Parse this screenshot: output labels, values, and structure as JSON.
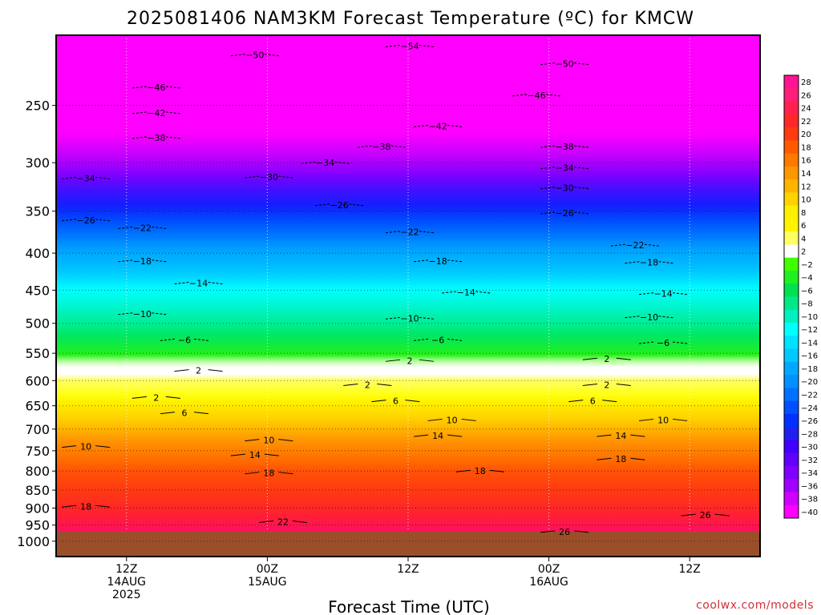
{
  "chart_data": {
    "type": "heatmap",
    "title": "2025081406 NAM3KM Forecast Temperature (ºC) for KMCW",
    "xlabel": "Forecast Time (UTC)",
    "credit": "coolwx.com/models",
    "y_scale": "log-pressure",
    "ylim": [
      1050,
      200
    ],
    "y_ticks": [
      250,
      300,
      350,
      400,
      450,
      500,
      550,
      600,
      650,
      700,
      750,
      800,
      850,
      900,
      950,
      1000
    ],
    "xlim_hours": [
      -5,
      45
    ],
    "x_ticks": [
      {
        "hour": 0,
        "lines": [
          "12Z",
          "14AUG",
          "2025"
        ]
      },
      {
        "hour": 10,
        "lines": [
          "00Z",
          "15AUG"
        ]
      },
      {
        "hour": 20,
        "lines": [
          "12Z"
        ]
      },
      {
        "hour": 30,
        "lines": [
          "00Z",
          "16AUG"
        ]
      },
      {
        "hour": 40,
        "lines": [
          "12Z"
        ]
      }
    ],
    "surface_pressure": 970,
    "profile": [
      {
        "p": 200,
        "t": -56
      },
      {
        "p": 220,
        "t": -53
      },
      {
        "p": 250,
        "t": -44
      },
      {
        "p": 300,
        "t": -35
      },
      {
        "p": 350,
        "t": -26
      },
      {
        "p": 400,
        "t": -18
      },
      {
        "p": 450,
        "t": -13
      },
      {
        "p": 500,
        "t": -9
      },
      {
        "p": 550,
        "t": -4
      },
      {
        "p": 580,
        "t": 1
      },
      {
        "p": 620,
        "t": 3
      },
      {
        "p": 650,
        "t": 6
      },
      {
        "p": 700,
        "t": 10
      },
      {
        "p": 750,
        "t": 14
      },
      {
        "p": 800,
        "t": 18
      },
      {
        "p": 850,
        "t": 20
      },
      {
        "p": 900,
        "t": 22
      },
      {
        "p": 950,
        "t": 25
      },
      {
        "p": 970,
        "t": 26
      }
    ],
    "colorbar": {
      "labels": [
        "28",
        "26",
        "24",
        "22",
        "20",
        "18",
        "16",
        "14",
        "12",
        "10",
        "8",
        "6",
        "4",
        "2",
        "−2",
        "−4",
        "−6",
        "−8",
        "−10",
        "−12",
        "−14",
        "−16",
        "−18",
        "−20",
        "−22",
        "−24",
        "−26",
        "−28",
        "−30",
        "−32",
        "−34",
        "−36",
        "−38",
        "−40"
      ],
      "colors": [
        "#ff1493",
        "#ff1e78",
        "#ff2050",
        "#ff2828",
        "#ff3a10",
        "#ff5a00",
        "#ff7800",
        "#ff9600",
        "#ffb400",
        "#ffd200",
        "#ffee00",
        "#fff300",
        "#ffff60",
        "#ffffff",
        "#40ff00",
        "#20f020",
        "#00e050",
        "#00e888",
        "#00f0c0",
        "#00ffff",
        "#00e0ff",
        "#00c8ff",
        "#00a8ff",
        "#0090ff",
        "#0070ff",
        "#0050ff",
        "#0030ff",
        "#2020f0",
        "#4000ff",
        "#6000ff",
        "#8000ff",
        "#a000ff",
        "#d000ff",
        "#ff00ff"
      ]
    },
    "contour_labels": [
      {
        "hour": 9,
        "p": 213,
        "text": "−50"
      },
      {
        "hour": 20,
        "p": 207,
        "text": "−54"
      },
      {
        "hour": 31,
        "p": 219,
        "text": "−50"
      },
      {
        "hour": 2,
        "p": 236,
        "text": "−46"
      },
      {
        "hour": 29,
        "p": 242,
        "text": "−46"
      },
      {
        "hour": 2,
        "p": 256,
        "text": "−42"
      },
      {
        "hour": 22,
        "p": 267,
        "text": "−42"
      },
      {
        "hour": 2,
        "p": 277,
        "text": "−38"
      },
      {
        "hour": 18,
        "p": 285,
        "text": "−38"
      },
      {
        "hour": 31,
        "p": 285,
        "text": "−38"
      },
      {
        "hour": -3,
        "p": 315,
        "text": "−34"
      },
      {
        "hour": 14,
        "p": 300,
        "text": "−34"
      },
      {
        "hour": 31,
        "p": 305,
        "text": "−34"
      },
      {
        "hour": 10,
        "p": 314,
        "text": "−30"
      },
      {
        "hour": 31,
        "p": 325,
        "text": "−30"
      },
      {
        "hour": -3,
        "p": 360,
        "text": "−26"
      },
      {
        "hour": 15,
        "p": 343,
        "text": "−26"
      },
      {
        "hour": 31,
        "p": 352,
        "text": "−26"
      },
      {
        "hour": 1,
        "p": 369,
        "text": "−22"
      },
      {
        "hour": 20,
        "p": 374,
        "text": "−22"
      },
      {
        "hour": 36,
        "p": 390,
        "text": "−22"
      },
      {
        "hour": 1,
        "p": 410,
        "text": "−18"
      },
      {
        "hour": 22,
        "p": 410,
        "text": "−18"
      },
      {
        "hour": 37,
        "p": 412,
        "text": "−18"
      },
      {
        "hour": 5,
        "p": 440,
        "text": "−14"
      },
      {
        "hour": 24,
        "p": 453,
        "text": "−14"
      },
      {
        "hour": 38,
        "p": 455,
        "text": "−14"
      },
      {
        "hour": 1,
        "p": 485,
        "text": "−10"
      },
      {
        "hour": 20,
        "p": 492,
        "text": "−10"
      },
      {
        "hour": 37,
        "p": 490,
        "text": "−10"
      },
      {
        "hour": 4,
        "p": 527,
        "text": "−6"
      },
      {
        "hour": 22,
        "p": 527,
        "text": "−6"
      },
      {
        "hour": 38,
        "p": 532,
        "text": "−6"
      },
      {
        "hour": 5,
        "p": 581,
        "text": "2"
      },
      {
        "hour": 20,
        "p": 563,
        "text": "2"
      },
      {
        "hour": 34,
        "p": 560,
        "text": "2"
      },
      {
        "hour": 2,
        "p": 633,
        "text": "2"
      },
      {
        "hour": 17,
        "p": 608,
        "text": "2"
      },
      {
        "hour": 34,
        "p": 608,
        "text": "2"
      },
      {
        "hour": 4,
        "p": 665,
        "text": "6"
      },
      {
        "hour": 19,
        "p": 640,
        "text": "6"
      },
      {
        "hour": 33,
        "p": 640,
        "text": "6"
      },
      {
        "hour": -3,
        "p": 740,
        "text": "10"
      },
      {
        "hour": 10,
        "p": 725,
        "text": "10"
      },
      {
        "hour": 23,
        "p": 680,
        "text": "10"
      },
      {
        "hour": 38,
        "p": 680,
        "text": "10"
      },
      {
        "hour": 9,
        "p": 760,
        "text": "14"
      },
      {
        "hour": 22,
        "p": 715,
        "text": "14"
      },
      {
        "hour": 35,
        "p": 715,
        "text": "14"
      },
      {
        "hour": 10,
        "p": 805,
        "text": "18"
      },
      {
        "hour": -3,
        "p": 895,
        "text": "18"
      },
      {
        "hour": 25,
        "p": 800,
        "text": "18"
      },
      {
        "hour": 35,
        "p": 770,
        "text": "18"
      },
      {
        "hour": 11,
        "p": 940,
        "text": "22"
      },
      {
        "hour": 41,
        "p": 920,
        "text": "26"
      },
      {
        "hour": 31,
        "p": 970,
        "text": "26"
      }
    ]
  }
}
